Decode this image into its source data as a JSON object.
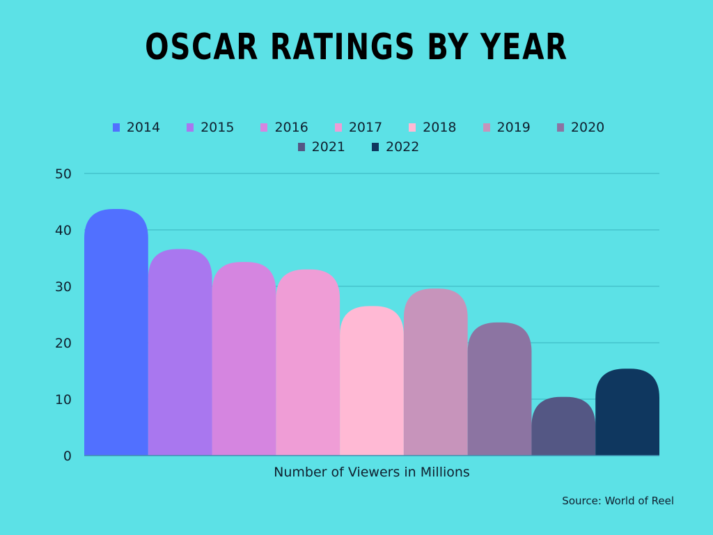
{
  "chart_data": {
    "type": "bar",
    "title": "OSCAR RATINGS BY YEAR",
    "xlabel": "Number of Viewers in Millions",
    "ylabel": "",
    "ylim": [
      0,
      50
    ],
    "yticks": [
      0,
      10,
      20,
      30,
      40,
      50
    ],
    "grid": true,
    "legend_position": "top-center",
    "series": [
      {
        "name": "2014",
        "value": 43.7,
        "color": "#5170ff"
      },
      {
        "name": "2015",
        "value": 36.6,
        "color": "#a977ef"
      },
      {
        "name": "2016",
        "value": 34.3,
        "color": "#d585e0"
      },
      {
        "name": "2017",
        "value": 33.0,
        "color": "#ef9dd6"
      },
      {
        "name": "2018",
        "value": 26.5,
        "color": "#ffb9d4"
      },
      {
        "name": "2019",
        "value": 29.6,
        "color": "#c794bb"
      },
      {
        "name": "2020",
        "value": 23.6,
        "color": "#8c74a2"
      },
      {
        "name": "2021",
        "value": 10.4,
        "color": "#545784"
      },
      {
        "name": "2022",
        "value": 15.4,
        "color": "#0f375f"
      }
    ],
    "source": "Source: World of Reel"
  }
}
